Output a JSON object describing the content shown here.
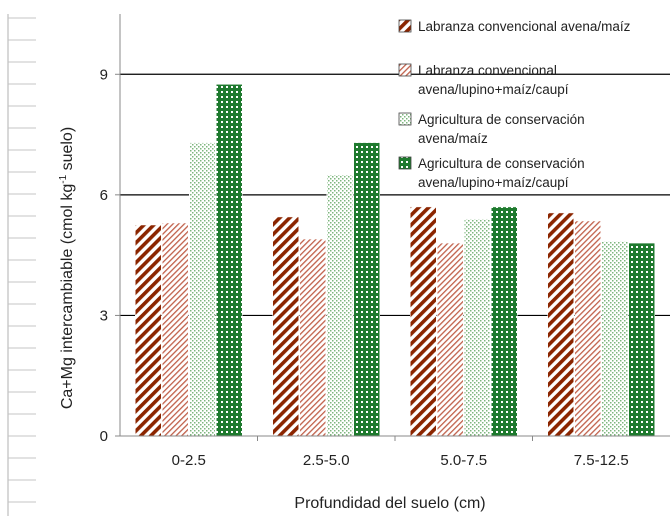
{
  "chart_data": {
    "type": "bar",
    "title": "",
    "xlabel": "Profundidad del suelo (cm)",
    "ylabel_main": "Ca+Mg intercambiable (cmol kg",
    "ylabel_sup": "-1",
    "ylabel_end": " suelo)",
    "ylim": [
      0,
      10.5
    ],
    "yticks": [
      0,
      3,
      6,
      9
    ],
    "grid": "horizontal",
    "legend_position": "top-right",
    "categories": [
      "0-2.5",
      "2.5-5.0",
      "5.0-7.5",
      "7.5-12.5"
    ],
    "series": [
      {
        "name_lines": [
          "Labranza convencional avena/maíz"
        ],
        "values": [
          5.25,
          5.45,
          5.7,
          5.55
        ],
        "pattern": "dense-diagonal",
        "color": "#8B2500"
      },
      {
        "name_lines": [
          "Labranza convencional",
          "avena/lupino+maíz/caupí"
        ],
        "values": [
          5.3,
          4.9,
          4.8,
          5.35
        ],
        "pattern": "light-diagonal",
        "color": "#C0604A"
      },
      {
        "name_lines": [
          "Agricultura de conservación",
          "avena/maíz"
        ],
        "values": [
          7.3,
          6.5,
          5.4,
          4.85
        ],
        "pattern": "light-dots",
        "color": "#7DB67D"
      },
      {
        "name_lines": [
          "Agricultura de conservación",
          "avena/lupino+maíz/caupí"
        ],
        "values": [
          8.75,
          7.3,
          5.7,
          4.8
        ],
        "pattern": "dense-squares",
        "color": "#1E7A2E"
      }
    ]
  }
}
